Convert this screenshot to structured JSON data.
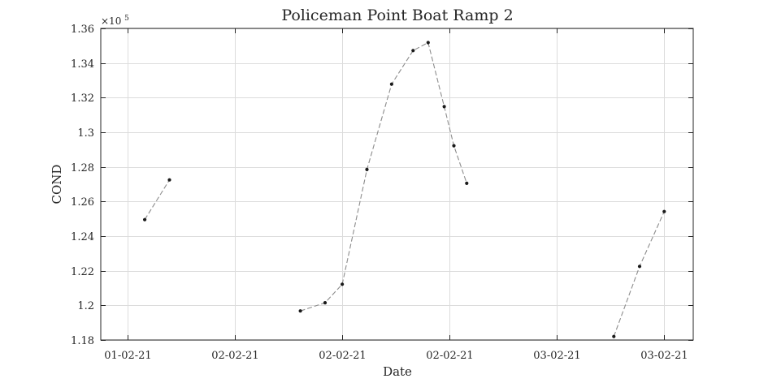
{
  "chart_data": {
    "type": "line",
    "title": "Policeman Point Boat Ramp 2",
    "xlabel": "Date",
    "ylabel": "COND",
    "y_exponent_label": "×10",
    "y_exponent_power": "5",
    "x_ticks": [
      {
        "label": "01-02-21",
        "x": 0
      },
      {
        "label": "02-02-21",
        "x": 1
      },
      {
        "label": "02-02-21",
        "x": 2
      },
      {
        "label": "02-02-21",
        "x": 3
      },
      {
        "label": "03-02-21",
        "x": 4
      },
      {
        "label": "03-02-21",
        "x": 5
      }
    ],
    "xlim": [
      -0.25,
      5.27
    ],
    "ylim": [
      1.18,
      1.36
    ],
    "y_ticks": [
      {
        "label": "1.18",
        "value": 1.18
      },
      {
        "label": "1.2",
        "value": 1.2
      },
      {
        "label": "1.22",
        "value": 1.22
      },
      {
        "label": "1.24",
        "value": 1.24
      },
      {
        "label": "1.26",
        "value": 1.26
      },
      {
        "label": "1.28",
        "value": 1.28
      },
      {
        "label": "1.3",
        "value": 1.3
      },
      {
        "label": "1.32",
        "value": 1.32
      },
      {
        "label": "1.34",
        "value": 1.34
      },
      {
        "label": "1.36",
        "value": 1.36
      }
    ],
    "grid": true,
    "series": [
      {
        "style": "dashed line with dot markers",
        "segments": [
          [
            {
              "x": 0.16,
              "y": 1.2495
            },
            {
              "x": 0.39,
              "y": 1.2725
            }
          ],
          [
            {
              "x": 1.61,
              "y": 1.1968
            },
            {
              "x": 1.84,
              "y": 1.2015
            },
            {
              "x": 2.0,
              "y": 1.2122
            },
            {
              "x": 2.23,
              "y": 1.2785
            },
            {
              "x": 2.46,
              "y": 1.3278
            },
            {
              "x": 2.66,
              "y": 1.3472
            },
            {
              "x": 2.8,
              "y": 1.3518
            },
            {
              "x": 2.95,
              "y": 1.3148
            },
            {
              "x": 3.04,
              "y": 1.2922
            },
            {
              "x": 3.16,
              "y": 1.2705
            }
          ],
          [
            {
              "x": 4.53,
              "y": 1.182
            },
            {
              "x": 4.77,
              "y": 1.2225
            },
            {
              "x": 5.0,
              "y": 1.2542
            }
          ]
        ]
      }
    ]
  },
  "colors": {
    "line": "#8c8c8c",
    "marker": "#1a1a1a",
    "grid": "#dcdcdc",
    "axis": "#262626",
    "text": "#262626"
  }
}
